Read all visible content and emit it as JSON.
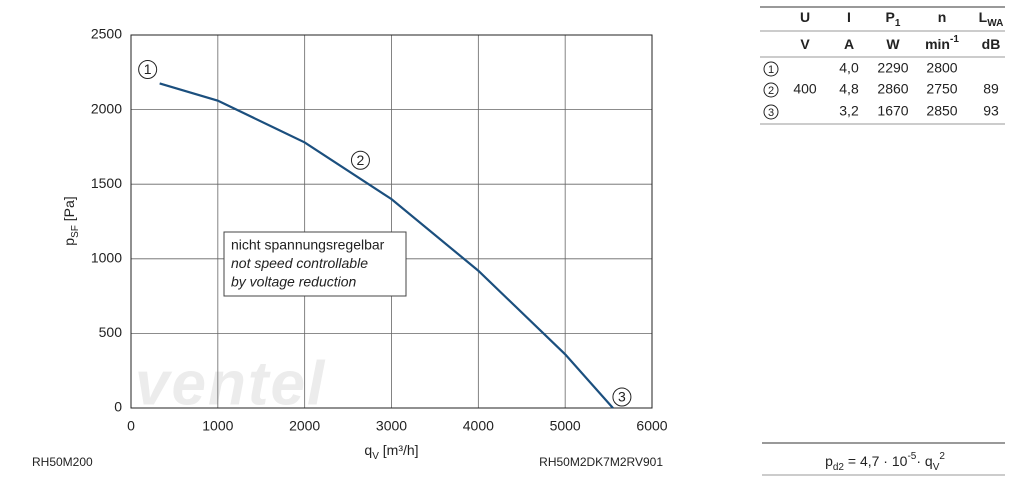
{
  "chart_data": {
    "type": "line",
    "x": [
      330,
      1000,
      2000,
      3000,
      4000,
      5000,
      5550
    ],
    "values": [
      2175,
      2060,
      1780,
      1400,
      920,
      360,
      0
    ],
    "color": "#1b4f7e",
    "xlim": [
      0,
      6000
    ],
    "xticks": [
      0,
      1000,
      2000,
      3000,
      4000,
      5000,
      6000
    ],
    "ylim": [
      0,
      2500
    ],
    "yticks": [
      0,
      500,
      1000,
      1500,
      2000,
      2500
    ],
    "grid": true,
    "xlabel": [
      {
        "text": "q"
      },
      {
        "text": "V",
        "shift": "sub"
      },
      {
        "text": " [m³/h]"
      }
    ],
    "ylabel": [
      {
        "text": "p"
      },
      {
        "text": "SF",
        "shift": "sub"
      },
      {
        "text": " [Pa]"
      }
    ],
    "points": [
      {
        "label": "1",
        "x": 330,
        "y": 2175
      },
      {
        "label": "2",
        "x": 2700,
        "y": 1540
      },
      {
        "label": "3",
        "x": 5550,
        "y": 0
      }
    ],
    "annotation": [
      {
        "text": "nicht spannungsregelbar"
      },
      {
        "text": "not speed controllable",
        "style": "italic"
      },
      {
        "text": "by voltage reduction",
        "style": "italic"
      }
    ],
    "footer_left": "RH50M200",
    "footer_right": "RH50M2DK7M2RV901",
    "watermark": "ventel"
  },
  "table": {
    "headers": [
      [
        {
          "text": "U"
        }
      ],
      [
        {
          "text": "I"
        }
      ],
      [
        {
          "text": "P"
        },
        {
          "text": "1",
          "shift": "sub"
        }
      ],
      [
        {
          "text": "n"
        }
      ],
      [
        {
          "text": "L"
        },
        {
          "text": "WA",
          "shift": "sub"
        }
      ]
    ],
    "units": [
      [
        {
          "text": "V"
        }
      ],
      [
        {
          "text": "A"
        }
      ],
      [
        {
          "text": "W"
        }
      ],
      [
        {
          "text": "min"
        },
        {
          "text": "-1",
          "shift": "super"
        }
      ],
      [
        {
          "text": "dB"
        }
      ]
    ],
    "U": "400",
    "rows": [
      [
        "1",
        "4,0",
        "2290",
        "2800"
      ],
      [
        "2",
        "4,8",
        "2860",
        "2750",
        "89"
      ],
      [
        "3",
        "3,2",
        "1670",
        "2850",
        "93"
      ]
    ],
    "formula": [
      {
        "text": "p"
      },
      {
        "text": "d2",
        "shift": "sub"
      },
      {
        "text": " = 4,7 · 10"
      },
      {
        "text": "-5",
        "shift": "super"
      },
      {
        "text": "· q"
      },
      {
        "text": "V",
        "shift": "sub"
      },
      {
        "text": "2",
        "shift": "super"
      }
    ]
  }
}
